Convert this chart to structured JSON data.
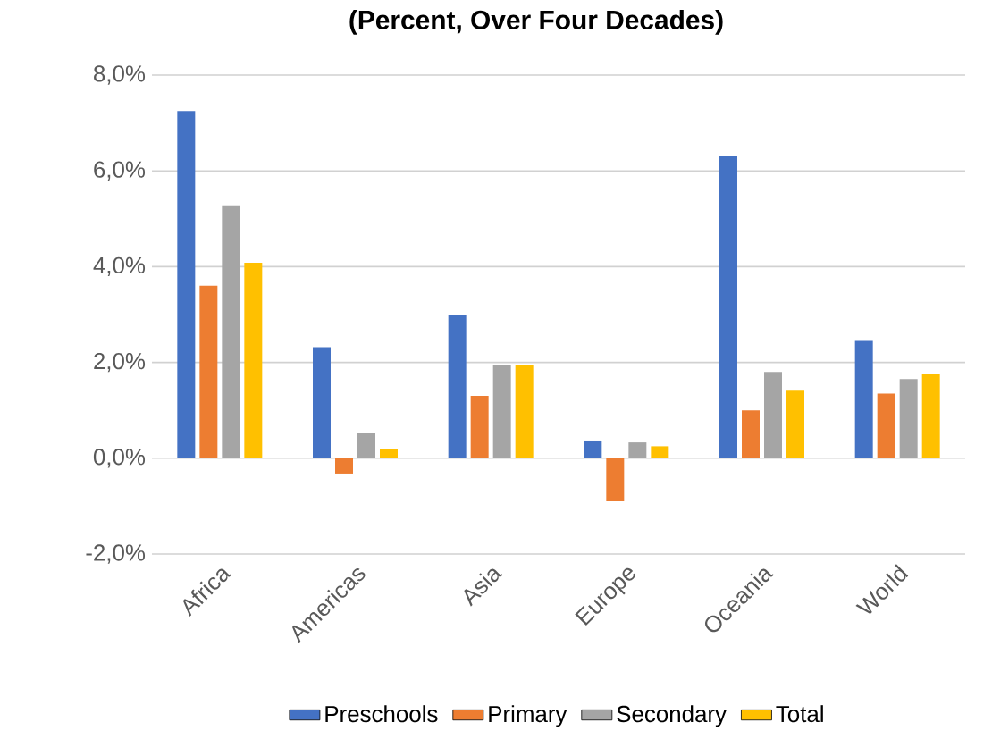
{
  "chart_data": {
    "type": "bar",
    "title": "(Percent, Over Four Decades)",
    "categories": [
      "Africa",
      "Americas",
      "Asia",
      "Europe",
      "Oceania",
      "World"
    ],
    "series": [
      {
        "name": "Preschools",
        "color": "#4472c4",
        "values": [
          7.25,
          2.32,
          2.98,
          0.37,
          6.3,
          2.45
        ]
      },
      {
        "name": "Primary",
        "color": "#ed7d31",
        "values": [
          3.6,
          -0.32,
          1.3,
          -0.9,
          1.0,
          1.35
        ]
      },
      {
        "name": "Secondary",
        "color": "#a5a5a5",
        "values": [
          5.28,
          0.52,
          1.95,
          0.33,
          1.8,
          1.65
        ]
      },
      {
        "name": "Total",
        "color": "#ffc000",
        "values": [
          4.08,
          0.2,
          1.95,
          0.25,
          1.43,
          1.75
        ]
      }
    ],
    "ylim": [
      -2,
      8
    ],
    "yticks": [
      {
        "value": -2,
        "label": "-2,0%"
      },
      {
        "value": 0,
        "label": "0,0%"
      },
      {
        "value": 2,
        "label": "2,0%"
      },
      {
        "value": 4,
        "label": "4,0%"
      },
      {
        "value": 6,
        "label": "6,0%"
      },
      {
        "value": 8,
        "label": "8,0%"
      }
    ],
    "grid": "y",
    "legend": "bottom"
  }
}
